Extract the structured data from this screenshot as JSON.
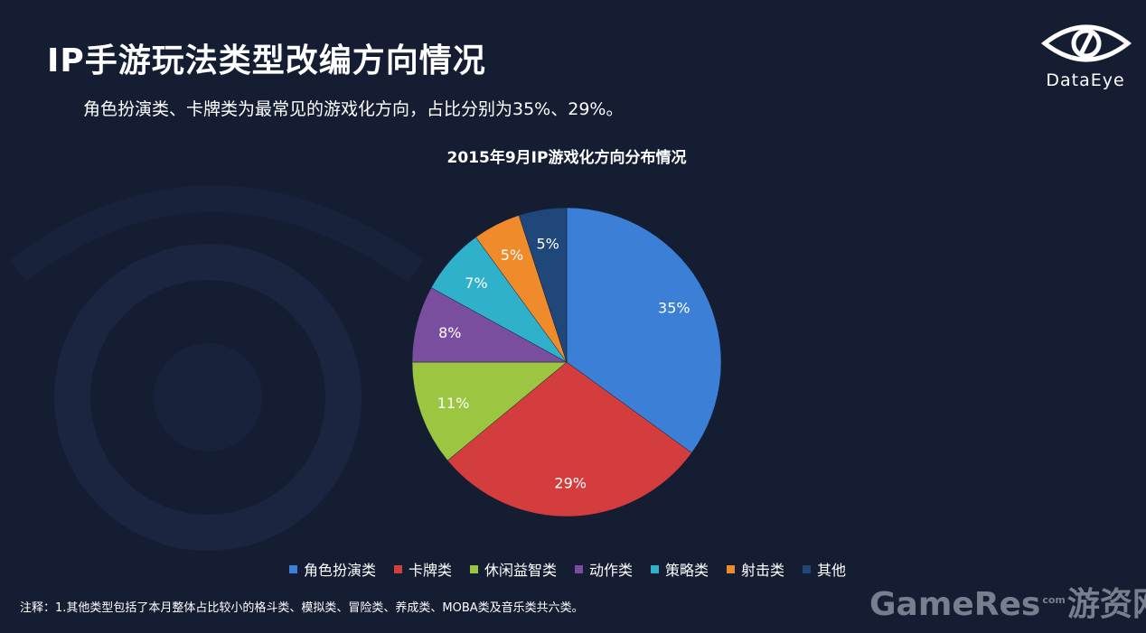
{
  "header": {
    "title": "IP手游玩法类型改编方向情况",
    "subtitle": "角色扮演类、卡牌类为最常见的游戏化方向，占比分别为35%、29%。"
  },
  "logo": {
    "text": "DataEye",
    "icon": "eye-icon"
  },
  "footnote": "注释：1.其他类型包括了本月整体占比较小的格斗类、模拟类、冒险类、养成类、MOBA类及音乐类共六类。",
  "watermark": {
    "main": "GameRes",
    "sup": "com",
    "cn": "游资网"
  },
  "chart_data": {
    "type": "pie",
    "title": "2015年9月IP游戏化方向分布情况",
    "legend_position": "bottom",
    "slices": [
      {
        "name": "角色扮演类",
        "value": 35,
        "label": "35%",
        "color": "#3b7fd6"
      },
      {
        "name": "卡牌类",
        "value": 29,
        "label": "29%",
        "color": "#d43d3d"
      },
      {
        "name": "休闲益智类",
        "value": 11,
        "label": "11%",
        "color": "#9cc542"
      },
      {
        "name": "动作类",
        "value": 8,
        "label": "8%",
        "color": "#7a4e9e"
      },
      {
        "name": "策略类",
        "value": 7,
        "label": "7%",
        "color": "#2fb1cc"
      },
      {
        "name": "射击类",
        "value": 5,
        "label": "5%",
        "color": "#f08b2b"
      },
      {
        "name": "其他",
        "value": 5,
        "label": "5%",
        "color": "#1f477a"
      }
    ]
  }
}
